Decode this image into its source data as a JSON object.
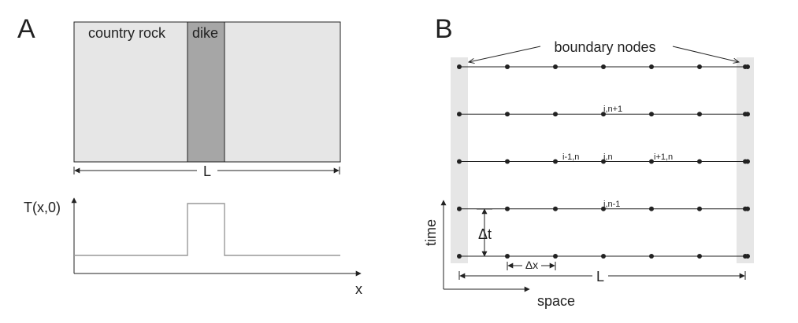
{
  "panel_a": {
    "letter": "A",
    "country_rock_label": "country rock",
    "dike_label": "dike",
    "length_label": "L",
    "y_axis_label": "T(x,0)",
    "x_axis_label": "x",
    "colors": {
      "rock": "#e6e6e6",
      "dike": "#a6a6a6",
      "profile": "#999999"
    }
  },
  "panel_b": {
    "letter": "B",
    "boundary_label": "boundary nodes",
    "length_label": "L",
    "dt_label": "Δt",
    "dx_label": "Δx",
    "time_label": "time",
    "space_label": "space",
    "node_labels": {
      "i_n_plus_1": "i,n+1",
      "i_minus_1_n": "i-1,n",
      "i_n": "i,n",
      "i_plus_1_n": "i+1,n",
      "i_n_minus_1": "i,n-1"
    },
    "grid": {
      "rows": 5,
      "cols": 7
    },
    "colors": {
      "boundary_band": "#e6e6e6",
      "node": "#222222"
    }
  }
}
